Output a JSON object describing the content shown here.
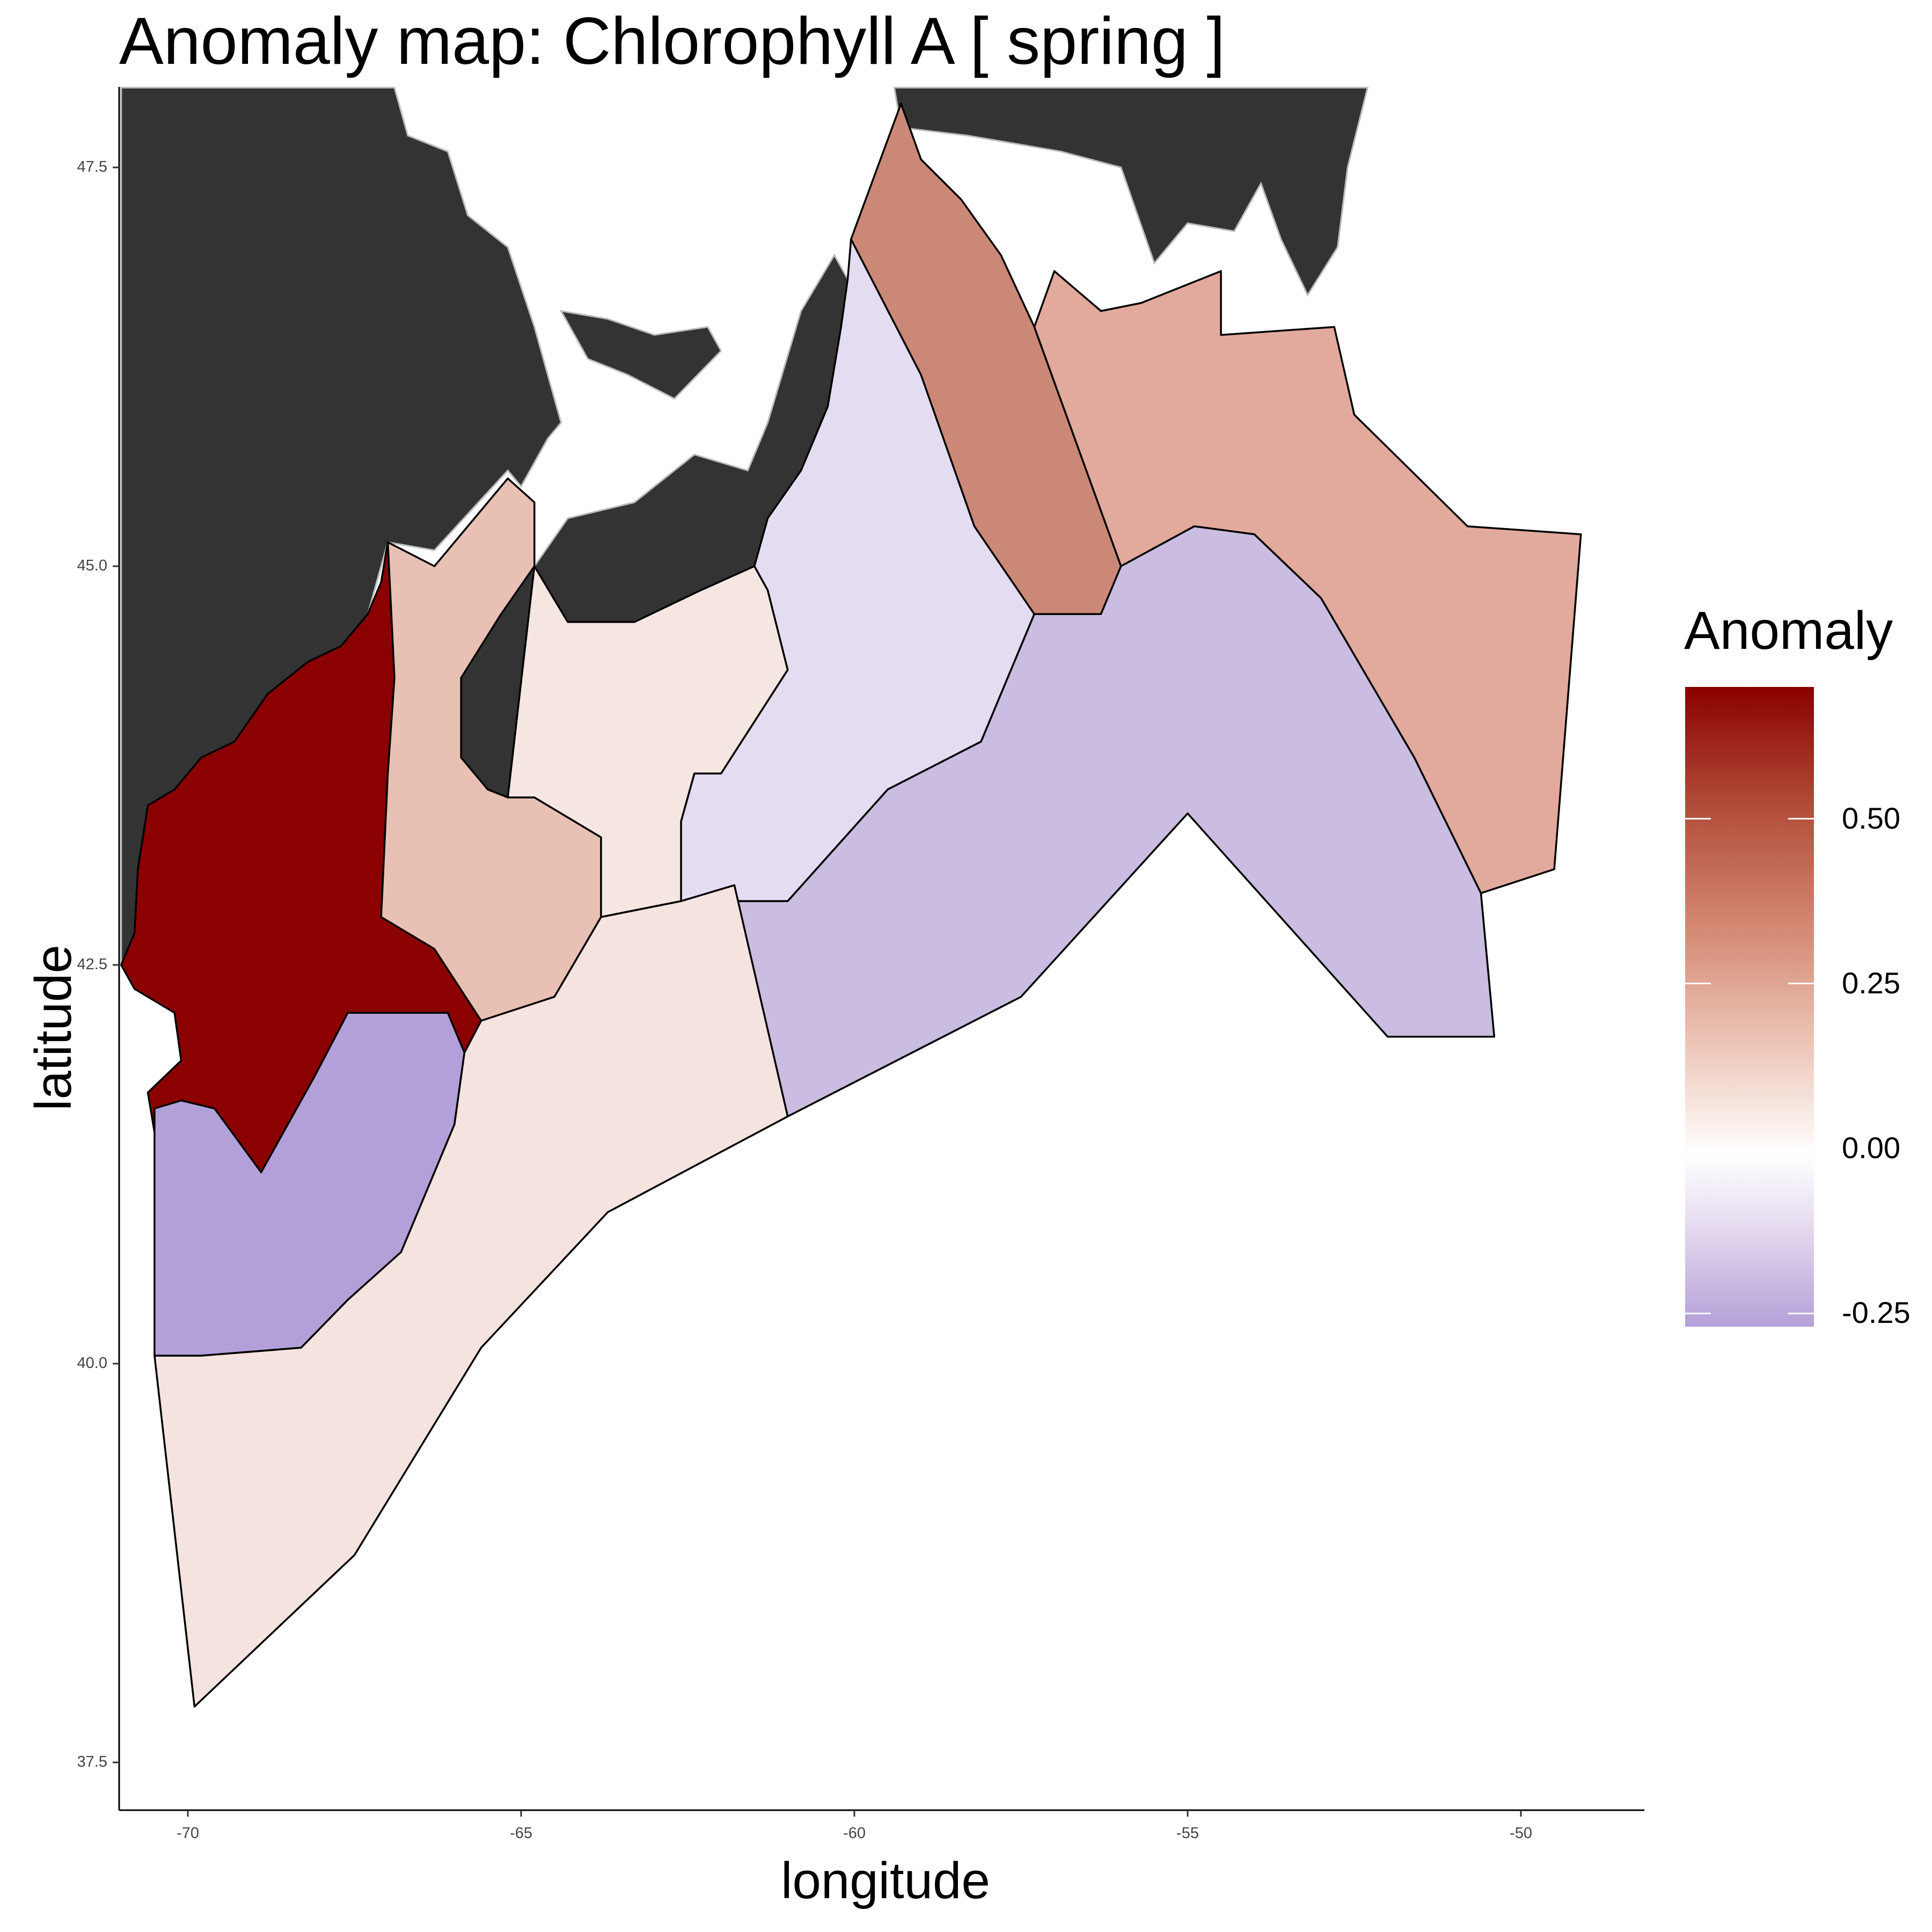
{
  "title": "Anomaly map: Chlorophyll A [ spring ]",
  "x_axis": {
    "label": "longitude",
    "range": [
      -71,
      -48
    ],
    "ticks": [
      {
        "value": -70,
        "label": "-70"
      },
      {
        "value": -65,
        "label": "-65"
      },
      {
        "value": -60,
        "label": "-60"
      },
      {
        "value": -55,
        "label": "-55"
      },
      {
        "value": -50,
        "label": "-50"
      }
    ]
  },
  "y_axis": {
    "label": "latitude",
    "range": [
      37,
      48
    ],
    "ticks": [
      {
        "value": 47.5,
        "label": "47.5"
      },
      {
        "value": 45.0,
        "label": "45.0"
      },
      {
        "value": 42.5,
        "label": "42.5"
      },
      {
        "value": 40.0,
        "label": "40.0"
      },
      {
        "value": 37.5,
        "label": "37.5"
      }
    ]
  },
  "legend": {
    "title": "Anomaly",
    "scale": "diverging",
    "colors": {
      "high": "#8b0000",
      "mid": "#ffffff",
      "low": "#b4a0d8"
    },
    "range": [
      -0.27,
      0.7
    ],
    "labels": [
      {
        "value": 0.5,
        "label": "0.50"
      },
      {
        "value": 0.25,
        "label": "0.25"
      },
      {
        "value": 0.0,
        "label": "0.00"
      },
      {
        "value": -0.25,
        "label": "-0.25"
      }
    ]
  },
  "map": {
    "land_color": "#333333",
    "land_outline": "#bbbbbb",
    "region_outline": "#000000",
    "regions": [
      {
        "name": "gulf-of-maine",
        "anomaly": 0.7,
        "fill": "#8b0000",
        "coords": [
          [
            -67.0,
            45.15
          ],
          [
            -66.9,
            44.3
          ],
          [
            -67.0,
            43.7
          ],
          [
            -67.1,
            42.8
          ],
          [
            -66.3,
            42.6
          ],
          [
            -65.6,
            42.15
          ],
          [
            -65.85,
            41.95
          ],
          [
            -66.1,
            42.2
          ],
          [
            -67.6,
            42.2
          ],
          [
            -68.1,
            41.8
          ],
          [
            -68.9,
            41.2
          ],
          [
            -69.6,
            41.6
          ],
          [
            -70.5,
            41.45
          ],
          [
            -70.6,
            41.7
          ],
          [
            -70.1,
            41.9
          ],
          [
            -70.2,
            42.2
          ],
          [
            -70.8,
            42.35
          ],
          [
            -71.0,
            42.5
          ],
          [
            -70.8,
            42.7
          ],
          [
            -70.75,
            43.1
          ],
          [
            -70.6,
            43.5
          ],
          [
            -70.2,
            43.6
          ],
          [
            -69.8,
            43.8
          ],
          [
            -69.3,
            43.9
          ],
          [
            -68.8,
            44.2
          ],
          [
            -68.2,
            44.4
          ],
          [
            -67.7,
            44.5
          ],
          [
            -67.3,
            44.7
          ],
          [
            -67.1,
            44.9
          ]
        ]
      },
      {
        "name": "georges-bank",
        "anomaly": -0.25,
        "fill": "#b4a0d8",
        "coords": [
          [
            -70.5,
            41.6
          ],
          [
            -70.1,
            41.65
          ],
          [
            -69.6,
            41.6
          ],
          [
            -68.9,
            41.2
          ],
          [
            -68.1,
            41.8
          ],
          [
            -67.6,
            42.2
          ],
          [
            -66.1,
            42.2
          ],
          [
            -65.85,
            41.95
          ],
          [
            -66.0,
            41.5
          ],
          [
            -66.8,
            40.7
          ],
          [
            -67.6,
            40.4
          ],
          [
            -68.3,
            40.1
          ],
          [
            -69.8,
            40.05
          ],
          [
            -70.5,
            40.05
          ]
        ]
      },
      {
        "name": "scotian-shelf-west",
        "anomaly": 0.22,
        "fill": "#e9c0b4",
        "coords": [
          [
            -67.0,
            45.15
          ],
          [
            -66.3,
            45.0
          ],
          [
            -65.2,
            45.55
          ],
          [
            -64.8,
            45.4
          ],
          [
            -64.8,
            45.0
          ],
          [
            -65.3,
            44.7
          ],
          [
            -65.9,
            44.3
          ],
          [
            -65.9,
            43.8
          ],
          [
            -65.5,
            43.6
          ],
          [
            -65.2,
            43.55
          ],
          [
            -64.8,
            43.55
          ],
          [
            -63.8,
            43.3
          ],
          [
            -63.8,
            42.8
          ],
          [
            -64.5,
            42.3
          ],
          [
            -65.6,
            42.15
          ],
          [
            -66.3,
            42.6
          ],
          [
            -67.1,
            42.8
          ],
          [
            -67.0,
            43.7
          ],
          [
            -66.9,
            44.3
          ]
        ]
      },
      {
        "name": "scotian-shelf-central",
        "anomaly": 0.05,
        "fill": "#f5e6e2",
        "coords": [
          [
            -64.8,
            45.0
          ],
          [
            -64.3,
            44.65
          ],
          [
            -63.3,
            44.65
          ],
          [
            -62.3,
            44.85
          ],
          [
            -61.5,
            45.0
          ],
          [
            -61.3,
            44.85
          ],
          [
            -61.0,
            44.35
          ],
          [
            -62.0,
            43.7
          ],
          [
            -62.4,
            43.7
          ],
          [
            -62.6,
            43.4
          ],
          [
            -62.6,
            42.9
          ],
          [
            -63.8,
            42.8
          ],
          [
            -63.8,
            43.3
          ],
          [
            -64.8,
            43.55
          ],
          [
            -65.2,
            43.55
          ]
        ]
      },
      {
        "name": "eastern-scotian-shelf",
        "anomaly": -0.05,
        "fill": "#e4dcf0",
        "coords": [
          [
            -61.5,
            45.0
          ],
          [
            -61.3,
            45.3
          ],
          [
            -60.8,
            45.6
          ],
          [
            -60.4,
            46.0
          ],
          [
            -60.2,
            46.5
          ],
          [
            -60.1,
            46.8
          ],
          [
            -60.05,
            47.05
          ],
          [
            -59.0,
            46.2
          ],
          [
            -58.2,
            45.25
          ],
          [
            -57.3,
            44.7
          ],
          [
            -58.1,
            43.9
          ],
          [
            -59.5,
            43.6
          ],
          [
            -61.0,
            42.9
          ],
          [
            -61.8,
            42.9
          ],
          [
            -62.6,
            42.9
          ],
          [
            -62.6,
            43.4
          ],
          [
            -62.4,
            43.7
          ],
          [
            -62.0,
            43.7
          ],
          [
            -61.0,
            44.35
          ],
          [
            -61.3,
            44.85
          ]
        ]
      },
      {
        "name": "laurentian-channel",
        "anomaly": 0.4,
        "fill": "#cc8877",
        "coords": [
          [
            -60.05,
            47.05
          ],
          [
            -59.3,
            47.9
          ],
          [
            -59.0,
            47.55
          ],
          [
            -58.4,
            47.3
          ],
          [
            -57.8,
            46.95
          ],
          [
            -57.3,
            46.5
          ],
          [
            -56.0,
            45.0
          ],
          [
            -56.3,
            44.7
          ],
          [
            -57.3,
            44.7
          ],
          [
            -58.2,
            45.25
          ],
          [
            -59.0,
            46.2
          ]
        ]
      },
      {
        "name": "grand-banks-north",
        "anomaly": 0.3,
        "fill": "#e2aa9c",
        "coords": [
          [
            -57.3,
            46.5
          ],
          [
            -57.0,
            46.85
          ],
          [
            -56.3,
            46.6
          ],
          [
            -55.7,
            46.65
          ],
          [
            -54.5,
            46.85
          ],
          [
            -54.5,
            46.45
          ],
          [
            -52.8,
            46.5
          ],
          [
            -52.5,
            45.95
          ],
          [
            -50.8,
            45.25
          ],
          [
            -49.1,
            45.2
          ],
          [
            -49.5,
            43.1
          ],
          [
            -50.6,
            42.95
          ],
          [
            -51.6,
            43.8
          ],
          [
            -53.0,
            44.8
          ],
          [
            -54.0,
            45.2
          ],
          [
            -54.9,
            45.25
          ],
          [
            -56.0,
            45.0
          ]
        ]
      },
      {
        "name": "grand-banks-south",
        "anomaly": -0.15,
        "fill": "#cabde1",
        "coords": [
          [
            -56.0,
            45.0
          ],
          [
            -54.9,
            45.25
          ],
          [
            -54.0,
            45.2
          ],
          [
            -53.0,
            44.8
          ],
          [
            -51.6,
            43.8
          ],
          [
            -50.6,
            42.95
          ],
          [
            -50.4,
            42.05
          ],
          [
            -52.0,
            42.05
          ],
          [
            -55.0,
            43.45
          ],
          [
            -57.5,
            42.3
          ],
          [
            -61.0,
            41.55
          ],
          [
            -61.8,
            42.9
          ],
          [
            -61.0,
            42.9
          ],
          [
            -59.5,
            43.6
          ],
          [
            -58.1,
            43.9
          ],
          [
            -57.3,
            44.7
          ],
          [
            -56.3,
            44.7
          ]
        ]
      },
      {
        "name": "slope-water",
        "anomaly": 0.06,
        "fill": "#f5e3e0",
        "coords": [
          [
            -70.5,
            40.05
          ],
          [
            -69.8,
            40.05
          ],
          [
            -68.3,
            40.1
          ],
          [
            -67.6,
            40.4
          ],
          [
            -66.8,
            40.7
          ],
          [
            -66.0,
            41.5
          ],
          [
            -65.85,
            41.95
          ],
          [
            -65.6,
            42.15
          ],
          [
            -64.5,
            42.3
          ],
          [
            -63.8,
            42.8
          ],
          [
            -62.6,
            42.9
          ],
          [
            -61.8,
            43.0
          ],
          [
            -61.0,
            41.55
          ],
          [
            -63.7,
            40.95
          ],
          [
            -65.6,
            40.1
          ],
          [
            -67.5,
            38.8
          ],
          [
            -69.9,
            37.85
          ]
        ]
      }
    ],
    "land": [
      {
        "name": "maine-quebec",
        "coords": [
          [
            -71,
            48
          ],
          [
            -66.9,
            48
          ],
          [
            -66.7,
            47.7
          ],
          [
            -66.1,
            47.6
          ],
          [
            -65.8,
            47.2
          ],
          [
            -65.2,
            47.0
          ],
          [
            -64.8,
            46.5
          ],
          [
            -64.4,
            45.9
          ],
          [
            -64.6,
            45.8
          ],
          [
            -65.0,
            45.5
          ],
          [
            -65.2,
            45.6
          ],
          [
            -66.3,
            45.1
          ],
          [
            -67.0,
            45.15
          ],
          [
            -67.3,
            44.7
          ],
          [
            -67.7,
            44.5
          ],
          [
            -68.2,
            44.4
          ],
          [
            -68.8,
            44.2
          ],
          [
            -69.3,
            43.9
          ],
          [
            -69.8,
            43.8
          ],
          [
            -70.2,
            43.6
          ],
          [
            -70.6,
            43.5
          ],
          [
            -70.75,
            43.1
          ],
          [
            -70.8,
            42.7
          ],
          [
            -71,
            42.5
          ]
        ]
      },
      {
        "name": "nova-scotia",
        "coords": [
          [
            -65.9,
            43.8
          ],
          [
            -65.9,
            44.3
          ],
          [
            -65.3,
            44.7
          ],
          [
            -64.8,
            45.0
          ],
          [
            -64.3,
            45.3
          ],
          [
            -63.3,
            45.4
          ],
          [
            -62.4,
            45.7
          ],
          [
            -61.6,
            45.6
          ],
          [
            -61.3,
            45.9
          ],
          [
            -60.8,
            46.6
          ],
          [
            -60.3,
            46.95
          ],
          [
            -60.1,
            46.8
          ],
          [
            -60.2,
            46.5
          ],
          [
            -60.4,
            46.0
          ],
          [
            -60.8,
            45.6
          ],
          [
            -61.3,
            45.3
          ],
          [
            -61.5,
            45.0
          ],
          [
            -62.3,
            44.85
          ],
          [
            -63.3,
            44.65
          ],
          [
            -64.3,
            44.65
          ],
          [
            -65.2,
            43.55
          ],
          [
            -65.5,
            43.6
          ]
        ]
      },
      {
        "name": "pei",
        "coords": [
          [
            -64.4,
            46.6
          ],
          [
            -63.7,
            46.55
          ],
          [
            -63.0,
            46.45
          ],
          [
            -62.2,
            46.5
          ],
          [
            -62.0,
            46.35
          ],
          [
            -62.7,
            46.05
          ],
          [
            -63.4,
            46.2
          ],
          [
            -64.0,
            46.3
          ]
        ]
      },
      {
        "name": "newfoundland",
        "coords": [
          [
            -59.4,
            48
          ],
          [
            -52.3,
            48
          ],
          [
            -52.6,
            47.5
          ],
          [
            -52.75,
            47.0
          ],
          [
            -53.2,
            46.7
          ],
          [
            -53.6,
            47.05
          ],
          [
            -53.9,
            47.4
          ],
          [
            -54.3,
            47.1
          ],
          [
            -55.0,
            47.15
          ],
          [
            -55.5,
            46.9
          ],
          [
            -56.0,
            47.5
          ],
          [
            -56.9,
            47.6
          ],
          [
            -58.3,
            47.7
          ],
          [
            -59.3,
            47.75
          ]
        ]
      }
    ]
  }
}
